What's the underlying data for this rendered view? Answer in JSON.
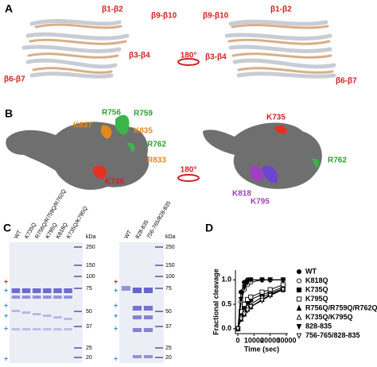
{
  "panel_a": {
    "letter": "A",
    "left_labels": [
      "β1-β2",
      "β9-β10",
      "β3-β4",
      "β6-β7"
    ],
    "right_labels": [
      "β9-β10",
      "β1-β2",
      "β3-β4",
      "β6-β7"
    ],
    "rotation": "180°"
  },
  "panel_b": {
    "letter": "B",
    "left_labels": [
      "R756",
      "R759",
      "K837",
      "K835",
      "R762",
      "R833",
      "K735"
    ],
    "right_labels": [
      "K735",
      "R762",
      "K818",
      "K795"
    ],
    "rotation": "180°"
  },
  "panel_c": {
    "letter": "C",
    "gel1_lanes": [
      "WT",
      "K735Q",
      "R756Q/R759Q/R762Q",
      "K795Q",
      "K818Q",
      "K735Q/K795Q"
    ],
    "gel2_lanes": [
      "WT",
      "828-835",
      "756-765/828-835"
    ],
    "kda_unit": "kDa",
    "markers": [
      "250",
      "150",
      "100",
      "75",
      "50",
      "37",
      "25",
      "20"
    ],
    "plus": "+"
  },
  "panel_d": {
    "letter": "D"
  },
  "chart_data": {
    "type": "line",
    "ylabel": "Fractional cleavage",
    "xlabel": "Time (sec)",
    "x": [
      0,
      2000,
      4000,
      6000,
      8000,
      15000,
      20000,
      28000
    ],
    "xlim": [
      -1500,
      31000
    ],
    "xticks": [
      0,
      10000,
      20000,
      30000
    ],
    "ylim": [
      -0.1,
      1.2
    ],
    "yticks": [
      {
        "value": 0,
        "label": "0.0"
      },
      0.5,
      {
        "value": 1,
        "label": "1.0"
      }
    ],
    "series": [
      {
        "name": "WT",
        "marker": "circle-filled",
        "color": "#000000",
        "values": [
          0,
          0.75,
          0.95,
          1.0,
          1.0,
          1.0,
          1.0,
          1.0
        ]
      },
      {
        "name": "K818Q",
        "marker": "circle-open",
        "color": "#000000",
        "values": [
          0,
          0.55,
          0.8,
          0.9,
          0.95,
          1.0,
          1.0,
          1.0
        ]
      },
      {
        "name": "K735Q",
        "marker": "square-filled",
        "color": "#000000",
        "values": [
          0,
          0.3,
          0.45,
          0.55,
          0.6,
          0.7,
          0.75,
          0.85
        ]
      },
      {
        "name": "K795Q",
        "marker": "square-open",
        "color": "#000000",
        "values": [
          0,
          0.35,
          0.5,
          0.6,
          0.65,
          0.75,
          0.8,
          0.9
        ]
      },
      {
        "name": "R756Q/R759Q/R762Q",
        "marker": "triangle-filled",
        "color": "#000000",
        "values": [
          0,
          0.2,
          0.3,
          0.4,
          0.45,
          0.6,
          0.7,
          0.8
        ]
      },
      {
        "name": "K735Q/K795Q",
        "marker": "triangle-open",
        "color": "#000000",
        "values": [
          0,
          0.25,
          0.35,
          0.45,
          0.5,
          0.65,
          0.72,
          0.82
        ]
      },
      {
        "name": "828-835",
        "marker": "down-filled",
        "color": "#000000",
        "values": [
          0,
          0.6,
          0.85,
          0.95,
          1.0,
          1.0,
          1.0,
          1.0
        ]
      },
      {
        "name": "756-765/828-835",
        "marker": "down-open",
        "color": "#000000",
        "values": [
          0,
          0.2,
          0.3,
          0.38,
          0.45,
          0.58,
          0.68,
          0.8
        ]
      }
    ]
  }
}
